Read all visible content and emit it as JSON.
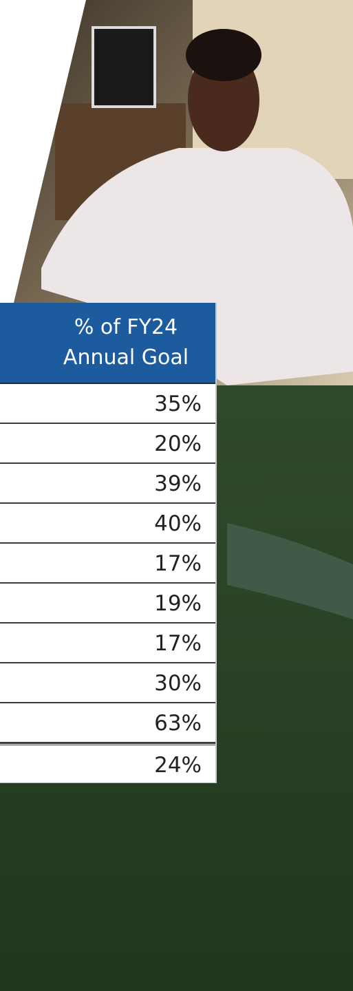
{
  "table": {
    "header": "% of FY24 Annual Goal",
    "rows": [
      "35%",
      "20%",
      "39%",
      "40%",
      "17%",
      "19%",
      "17%",
      "30%",
      "63%",
      "24%"
    ]
  }
}
